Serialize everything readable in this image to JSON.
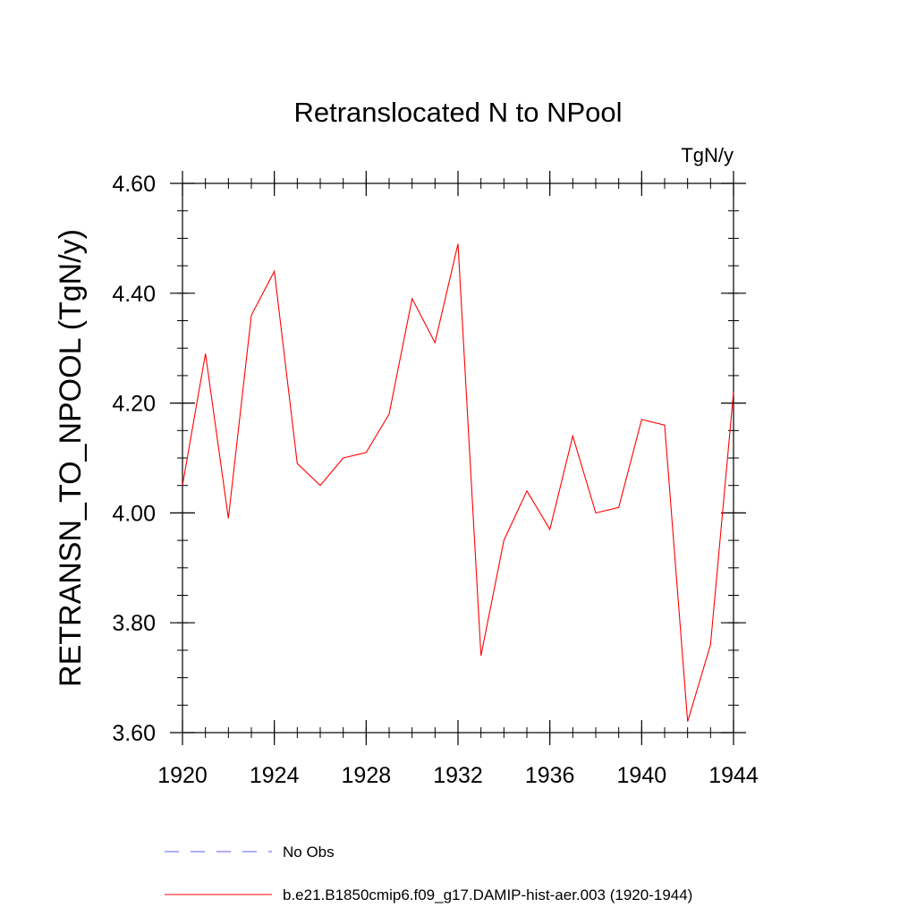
{
  "chart_data": {
    "type": "line",
    "title": "Retranslocated N to NPool",
    "units_label": "TgN/y",
    "ylabel": "RETRANSN_TO_NPOOL  (TgN/y)",
    "xlabel": "",
    "xlim": [
      1920,
      1944
    ],
    "ylim": [
      3.6,
      4.6
    ],
    "x_ticks": [
      1920,
      1924,
      1928,
      1932,
      1936,
      1940,
      1944
    ],
    "x_tick_labels": [
      "1920",
      "1924",
      "1928",
      "1932",
      "1936",
      "1940",
      "1944"
    ],
    "y_ticks": [
      3.6,
      3.8,
      4.0,
      4.2,
      4.4,
      4.6
    ],
    "y_tick_labels": [
      "3.60",
      "3.80",
      "4.00",
      "4.20",
      "4.40",
      "4.60"
    ],
    "grid": false,
    "legend_position": "bottom",
    "series": [
      {
        "name": "b.e21.B1850cmip6.f09_g17.DAMIP-hist-aer.003 (1920-1944)",
        "color": "#ff0000",
        "style": "solid",
        "x": [
          1920,
          1921,
          1922,
          1923,
          1924,
          1925,
          1926,
          1927,
          1928,
          1929,
          1930,
          1931,
          1932,
          1933,
          1934,
          1935,
          1936,
          1937,
          1938,
          1939,
          1940,
          1941,
          1942,
          1943,
          1944
        ],
        "y": [
          4.05,
          4.29,
          3.99,
          4.36,
          4.44,
          4.09,
          4.05,
          4.1,
          4.11,
          4.18,
          4.39,
          4.31,
          4.49,
          3.74,
          3.95,
          4.04,
          3.97,
          4.14,
          4.0,
          4.01,
          4.17,
          4.16,
          3.62,
          3.76,
          4.22
        ]
      }
    ],
    "legend": [
      {
        "label": "No Obs",
        "color": "#5a5aff",
        "style": "dashed"
      },
      {
        "label": "b.e21.B1850cmip6.f09_g17.DAMIP-hist-aer.003 (1920-1944)",
        "color": "#ff0000",
        "style": "solid"
      }
    ]
  }
}
